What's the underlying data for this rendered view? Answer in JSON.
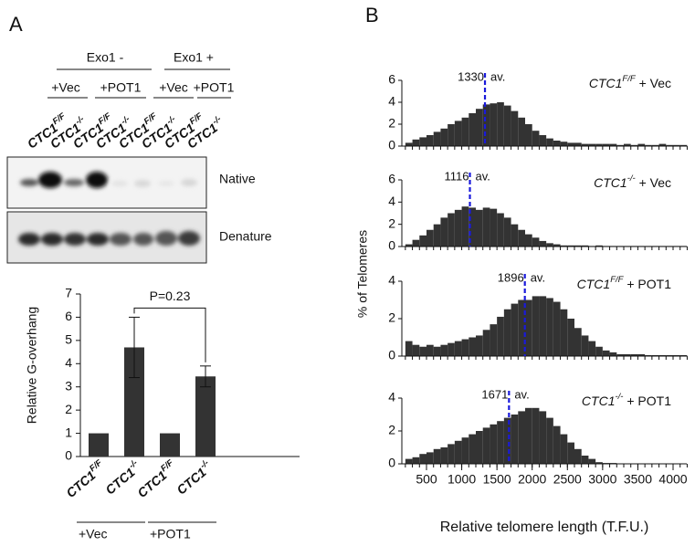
{
  "panel_labels": [
    "A",
    "B"
  ],
  "blot": {
    "groups": [
      "Exo1 -",
      "Exo1 +"
    ],
    "subgroups": [
      "+Vec",
      "+POT1",
      "+Vec",
      "+POT1"
    ],
    "lanes": [
      {
        "base": "CTC1",
        "sup": "F/F"
      },
      {
        "base": "CTC1",
        "sup": "-/-"
      },
      {
        "base": "CTC1",
        "sup": "F/F"
      },
      {
        "base": "CTC1",
        "sup": "-/-"
      },
      {
        "base": "CTC1",
        "sup": "F/F"
      },
      {
        "base": "CTC1",
        "sup": "-/-"
      },
      {
        "base": "CTC1",
        "sup": "F/F"
      },
      {
        "base": "CTC1",
        "sup": "-/-"
      }
    ],
    "rows": [
      "Native",
      "Denature"
    ]
  },
  "chart_data": [
    {
      "type": "bar",
      "y_label": "Relative G-overhang",
      "categories": [
        "CTC1",
        "CTC1",
        "CTC1",
        "CTC1"
      ],
      "category_superscripts": [
        "F/F",
        "-/-",
        "F/F",
        "-/-"
      ],
      "values": [
        1,
        4.7,
        1,
        3.45
      ],
      "errors": [
        0,
        1.3,
        0,
        0.45
      ],
      "color": "#333333",
      "ylim": [
        0,
        7
      ],
      "yticks": [
        0,
        1,
        2,
        3,
        4,
        5,
        6,
        7
      ],
      "group_labels": [
        "+Vec",
        "+POT1"
      ],
      "annotation": "P=0.23"
    },
    {
      "type": "histogram",
      "label_base": "CTC1",
      "label_sup": "F/F",
      "label_rest": " + Vec",
      "average": 1330,
      "average_label": "av.",
      "color": "#333333",
      "average_color": "#1a1adb",
      "bins": [
        200,
        300,
        400,
        500,
        600,
        700,
        800,
        900,
        1000,
        1100,
        1200,
        1300,
        1400,
        1500,
        1600,
        1700,
        1800,
        1900,
        2000,
        2100,
        2200,
        2300,
        2400,
        2500,
        2600,
        2700,
        2800,
        2900,
        3000,
        3100,
        3200,
        3300,
        3400,
        3500,
        3600,
        3700,
        3800,
        3900,
        4000,
        4100,
        4200
      ],
      "counts": [
        0.3,
        0.6,
        0.8,
        1.0,
        1.3,
        1.6,
        2.0,
        2.3,
        2.6,
        3.0,
        3.4,
        3.8,
        3.9,
        4.0,
        3.7,
        3.2,
        2.6,
        2.0,
        1.4,
        1.0,
        0.7,
        0.5,
        0.4,
        0.3,
        0.3,
        0.2,
        0.2,
        0.2,
        0.2,
        0.2,
        0.1,
        0.2,
        0.1,
        0.2,
        0.1,
        0.1,
        0.2,
        0.1,
        0.1,
        0.1
      ],
      "ylim": [
        0,
        6
      ],
      "yticks": [
        0,
        2,
        4,
        6
      ]
    },
    {
      "type": "histogram",
      "label_base": "CTC1",
      "label_sup": "-/-",
      "label_rest": " + Vec",
      "average": 1116,
      "average_label": "av.",
      "color": "#333333",
      "average_color": "#1a1adb",
      "bins": [
        200,
        300,
        400,
        500,
        600,
        700,
        800,
        900,
        1000,
        1100,
        1200,
        1300,
        1400,
        1500,
        1600,
        1700,
        1800,
        1900,
        2000,
        2100,
        2200,
        2300,
        2400,
        2500,
        2600,
        2700,
        2800,
        2900,
        3000,
        3100,
        3200,
        3300,
        3400,
        3500,
        3600,
        3700,
        3800,
        3900,
        4000,
        4100,
        4200
      ],
      "counts": [
        0.2,
        0.6,
        1.0,
        1.5,
        2.0,
        2.6,
        3.0,
        3.3,
        3.6,
        3.5,
        3.3,
        3.5,
        3.4,
        3.0,
        2.6,
        2.0,
        1.5,
        1.1,
        0.8,
        0.5,
        0.3,
        0.2,
        0.1,
        0.1,
        0.1,
        0.1,
        0.05,
        0.1,
        0.05,
        0.05,
        0.05,
        0.05,
        0.05,
        0.05,
        0.05,
        0.05,
        0.05,
        0.05,
        0.05,
        0.05
      ],
      "ylim": [
        0,
        6
      ],
      "yticks": [
        0,
        2,
        4,
        6
      ]
    },
    {
      "type": "histogram",
      "label_base": "CTC1",
      "label_sup": "F/F",
      "label_rest": " + POT1",
      "average": 1896,
      "average_label": "av.",
      "color": "#333333",
      "average_color": "#1a1adb",
      "bins": [
        200,
        300,
        400,
        500,
        600,
        700,
        800,
        900,
        1000,
        1100,
        1200,
        1300,
        1400,
        1500,
        1600,
        1700,
        1800,
        1900,
        2000,
        2100,
        2200,
        2300,
        2400,
        2500,
        2600,
        2700,
        2800,
        2900,
        3000,
        3100,
        3200,
        3300,
        3400,
        3500,
        3600,
        3700,
        3800,
        3900,
        4000,
        4100,
        4200
      ],
      "counts": [
        0.8,
        0.6,
        0.5,
        0.6,
        0.5,
        0.6,
        0.7,
        0.8,
        0.9,
        1.0,
        1.1,
        1.4,
        1.7,
        2.1,
        2.5,
        2.8,
        3.0,
        3.0,
        3.2,
        3.2,
        3.1,
        2.9,
        2.5,
        2.0,
        1.5,
        1.1,
        0.8,
        0.5,
        0.3,
        0.2,
        0.1,
        0.1,
        0.1,
        0.1,
        0.05,
        0.05,
        0.05,
        0.05,
        0.05,
        0.05
      ],
      "ylim": [
        0,
        4
      ],
      "yticks": [
        0,
        2,
        4
      ]
    },
    {
      "type": "histogram",
      "label_base": "CTC1",
      "label_sup": "-/-",
      "label_rest": " + POT1",
      "average": 1671,
      "average_label": "av.",
      "color": "#333333",
      "average_color": "#1a1adb",
      "bins": [
        200,
        300,
        400,
        500,
        600,
        700,
        800,
        900,
        1000,
        1100,
        1200,
        1300,
        1400,
        1500,
        1600,
        1700,
        1800,
        1900,
        2000,
        2100,
        2200,
        2300,
        2400,
        2500,
        2600,
        2700,
        2800,
        2900,
        3000,
        3100,
        3200,
        3300,
        3400,
        3500,
        3600,
        3700,
        3800,
        3900,
        4000,
        4100,
        4200
      ],
      "counts": [
        0.3,
        0.4,
        0.6,
        0.7,
        0.9,
        1.0,
        1.2,
        1.4,
        1.6,
        1.8,
        2.0,
        2.2,
        2.4,
        2.6,
        2.8,
        3.0,
        3.2,
        3.4,
        3.4,
        3.2,
        2.8,
        2.3,
        1.8,
        1.3,
        0.9,
        0.5,
        0.3,
        0.1,
        0.05,
        0.05,
        0,
        0,
        0,
        0,
        0,
        0,
        0,
        0,
        0,
        0
      ],
      "ylim": [
        0,
        4
      ],
      "yticks": [
        0,
        2,
        4
      ],
      "xticks": [
        500,
        1000,
        1500,
        2000,
        2500,
        3000,
        3500,
        4000
      ],
      "x_label": "Relative telomere length (T.F.U.)",
      "y_label": "% of Telomeres"
    }
  ]
}
